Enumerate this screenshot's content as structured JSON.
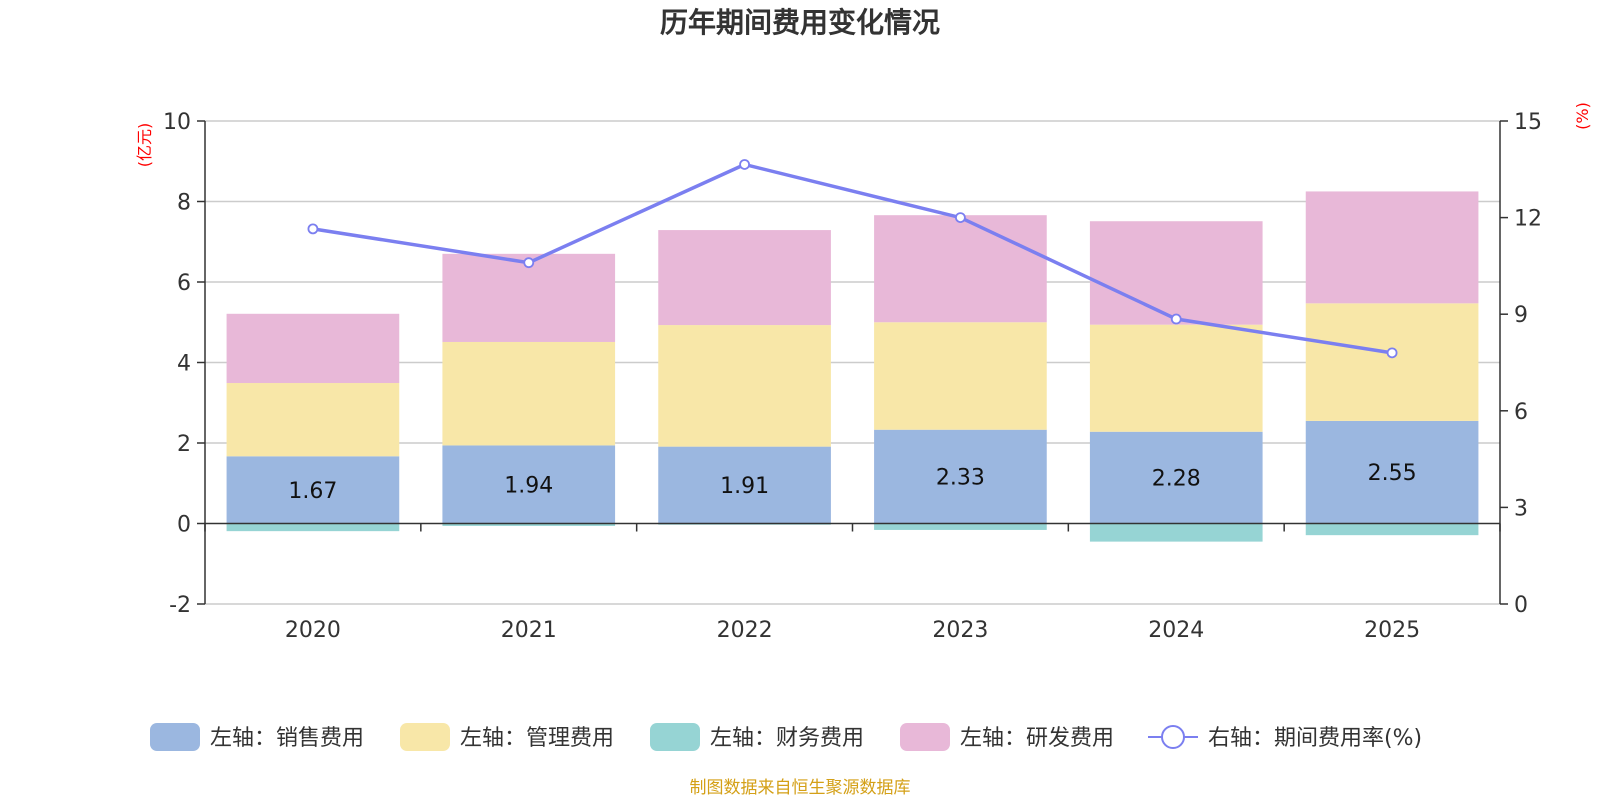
{
  "chart_data": {
    "type": "bar",
    "stacked": true,
    "title": "历年期间费用变化情况",
    "categories": [
      "2020",
      "2021",
      "2022",
      "2023",
      "2024",
      "2025"
    ],
    "left_axis": {
      "unit": "(亿元)",
      "min": -2,
      "max": 10,
      "ticks": [
        "-2",
        "0",
        "2",
        "4",
        "6",
        "8",
        "10"
      ]
    },
    "right_axis": {
      "unit": "(%)",
      "min": 0,
      "max": 15,
      "ticks": [
        "0",
        "3",
        "6",
        "9",
        "12",
        "15"
      ]
    },
    "series": [
      {
        "name": "左轴：销售费用",
        "axis": "left",
        "kind": "bar",
        "color": "#9bb7e0",
        "values": [
          1.67,
          1.94,
          1.91,
          2.33,
          2.28,
          2.55
        ],
        "labels": [
          "1.67",
          "1.94",
          "1.91",
          "2.33",
          "2.28",
          "2.55"
        ]
      },
      {
        "name": "左轴：管理费用",
        "axis": "left",
        "kind": "bar",
        "color": "#f8e7a8",
        "values": [
          1.82,
          2.57,
          3.02,
          2.67,
          2.66,
          2.92
        ]
      },
      {
        "name": "左轴：财务费用",
        "axis": "left",
        "kind": "bar",
        "color": "#96d4d4",
        "values": [
          -0.19,
          -0.06,
          -0.03,
          -0.16,
          -0.45,
          -0.29
        ]
      },
      {
        "name": "左轴：研发费用",
        "axis": "left",
        "kind": "bar",
        "color": "#e8b8d8",
        "values": [
          1.72,
          2.19,
          2.36,
          2.66,
          2.57,
          2.78
        ]
      },
      {
        "name": "右轴：期间费用率(%)",
        "axis": "right",
        "kind": "line",
        "color": "#7b7ff0",
        "values": [
          11.65,
          10.6,
          13.65,
          12.0,
          8.85,
          7.8
        ]
      }
    ]
  },
  "footer": {
    "source": "制图数据来自恒生聚源数据库"
  }
}
